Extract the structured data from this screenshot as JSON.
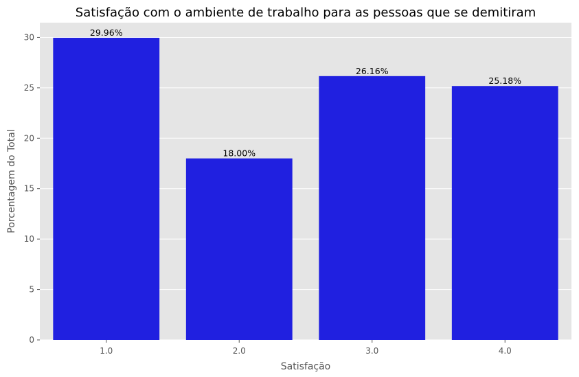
{
  "chart_data": {
    "type": "bar",
    "title": "Satisfação com o ambiente de trabalho para as pessoas que se demitiram",
    "xlabel": "Satisfação",
    "ylabel": "Porcentagem do Total",
    "categories": [
      "1.0",
      "2.0",
      "3.0",
      "4.0"
    ],
    "values": [
      29.96,
      18.0,
      26.16,
      25.18
    ],
    "data_labels": [
      "29.96%",
      "18.00%",
      "26.16%",
      "25.18%"
    ],
    "yticks": [
      0,
      5,
      10,
      15,
      20,
      25,
      30
    ],
    "ylim": [
      0,
      31.46
    ],
    "grid": true,
    "bar_color": "#2020e0",
    "background_color": "#e5e5e5",
    "grid_color": "#ffffff"
  }
}
